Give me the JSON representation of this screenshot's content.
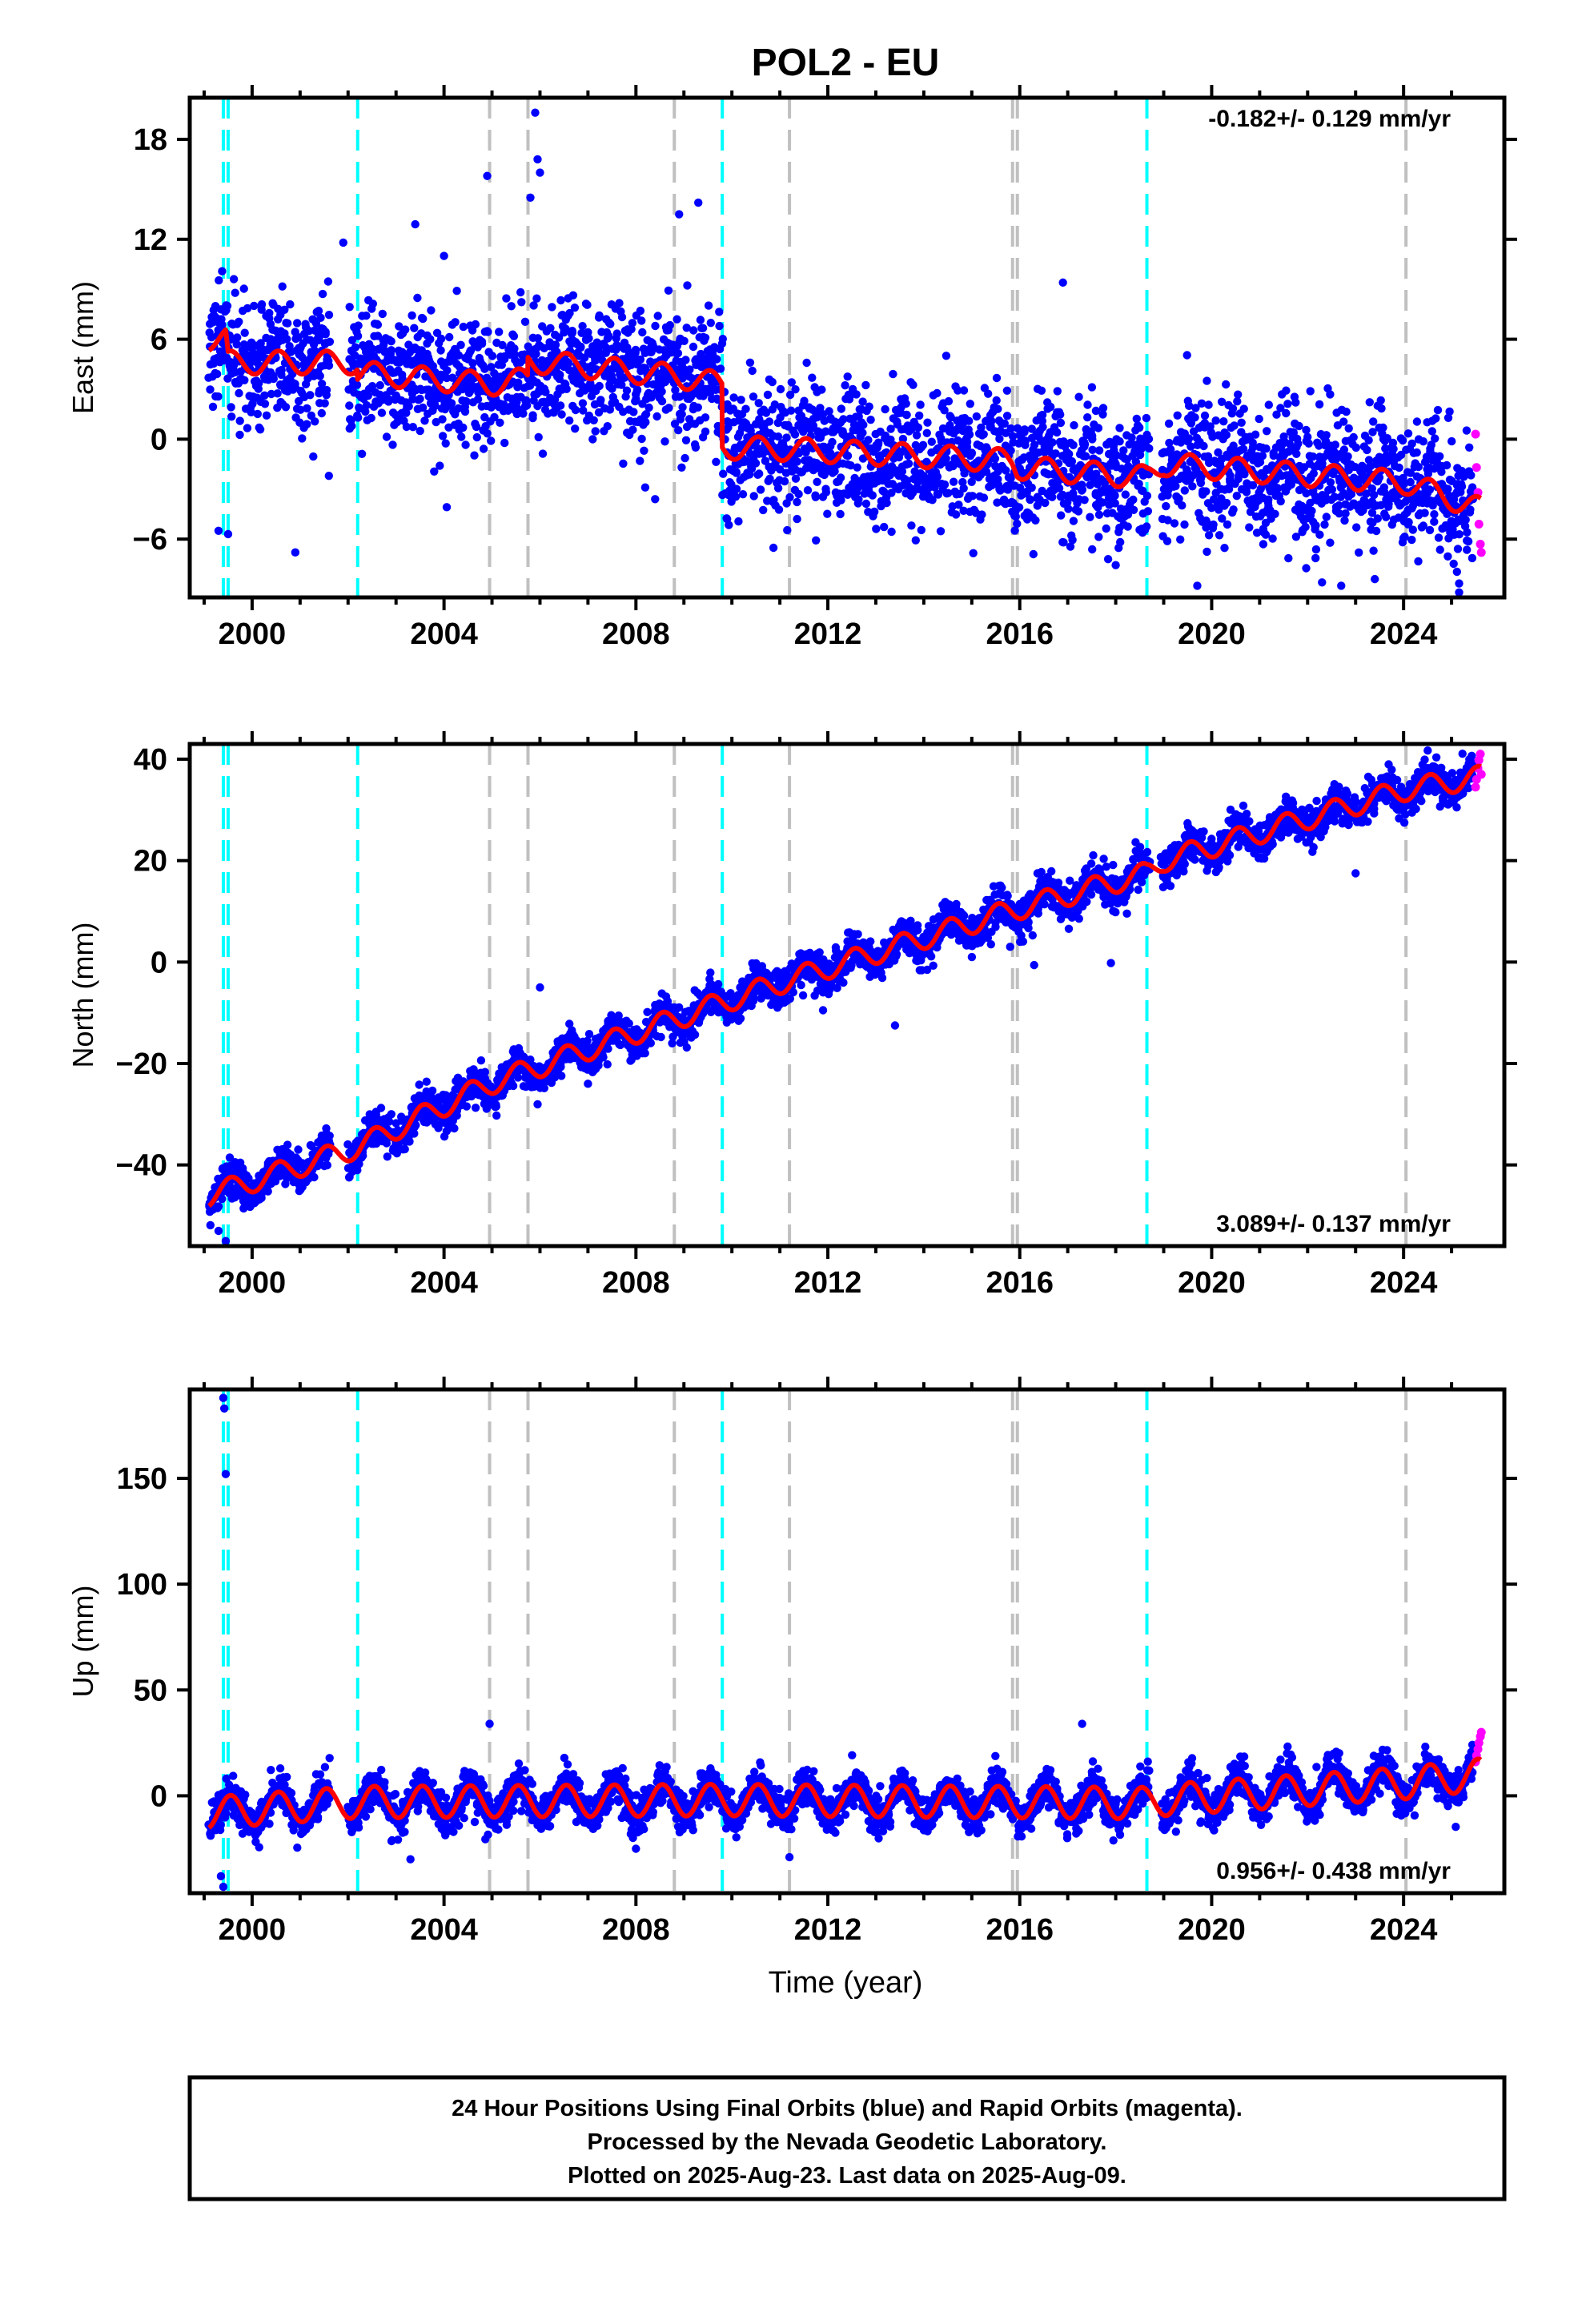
{
  "chart_data": {
    "type": "scatter",
    "title": "POL2 - EU",
    "xlabel": "Time (year)",
    "xlim": [
      1998.7,
      2026.1
    ],
    "xticks": [
      2000,
      2004,
      2008,
      2012,
      2016,
      2020,
      2024
    ],
    "xtick_labels": [
      "2000",
      "2004",
      "2008",
      "2012",
      "2016",
      "2020",
      "2024"
    ],
    "data_start": 1999.1,
    "data_end": 2025.61,
    "rapid_orbit_start": 2025.45,
    "colors": {
      "final_orbits": "#0000ff",
      "rapid_orbits": "#ff00ff",
      "model": "#ff0000",
      "antenna_change": "#00ffff",
      "other_event": "#c0c0c0"
    },
    "cyan_lines": [
      1999.4,
      1999.5,
      2002.2,
      2009.8,
      2018.65
    ],
    "gray_lines": [
      2004.95,
      2005.75,
      2008.8,
      2011.2,
      2015.85,
      2015.95,
      2024.05
    ],
    "panels": [
      {
        "component": "East",
        "ylabel": "East (mm)",
        "ylim": [
          -9.5,
          20.5
        ],
        "yticks": [
          -6,
          0,
          6,
          12,
          18
        ],
        "ytick_labels": [
          "−6",
          "0",
          "6",
          "12",
          "18"
        ],
        "rate_text": "-0.182+/- 0.129 mm/yr",
        "rate_position": "top-right",
        "scatter_sd": 1.9,
        "seasonal_amplitude": 0.7,
        "model": [
          [
            1999.1,
            6.0
          ],
          [
            1999.45,
            6.0
          ],
          [
            1999.5,
            4.6
          ],
          [
            2002.2,
            4.6
          ],
          [
            2002.2,
            4.0
          ],
          [
            2004.95,
            3.3
          ],
          [
            2005.75,
            3.6
          ],
          [
            2005.75,
            4.7
          ],
          [
            2008.8,
            3.8
          ],
          [
            2009.8,
            3.3
          ],
          [
            2009.8,
            -0.5
          ],
          [
            2011.2,
            -0.6
          ],
          [
            2015.85,
            -1.3
          ],
          [
            2015.95,
            -1.7
          ],
          [
            2018.65,
            -2.3
          ],
          [
            2019.0,
            -1.5
          ],
          [
            2024.05,
            -2.6
          ],
          [
            2025.6,
            -4.2
          ]
        ],
        "outliers": [
          [
            1999.3,
            -5.5
          ],
          [
            1999.5,
            -5.7
          ],
          [
            2000.9,
            -6.8
          ],
          [
            2001.6,
            -2.2
          ],
          [
            2001.9,
            11.8
          ],
          [
            2003.4,
            12.9
          ],
          [
            2004.0,
            11.0
          ],
          [
            2004.9,
            15.8
          ],
          [
            2005.8,
            14.5
          ],
          [
            2005.9,
            19.6
          ],
          [
            2005.95,
            16.8
          ],
          [
            2006.0,
            16.0
          ],
          [
            2008.4,
            -3.6
          ],
          [
            2008.9,
            13.5
          ],
          [
            2009.3,
            14.2
          ],
          [
            2009.9,
            -4.8
          ],
          [
            2016.9,
            9.4
          ],
          [
            2019.7,
            -8.8
          ],
          [
            2019.9,
            3.5
          ],
          [
            2022.3,
            -8.6
          ],
          [
            2022.7,
            -8.8
          ],
          [
            2023.4,
            -8.4
          ]
        ],
        "rapid": [
          [
            2025.5,
            0.3
          ],
          [
            2025.52,
            -1.7
          ],
          [
            2025.55,
            -3.2
          ],
          [
            2025.57,
            -5.1
          ],
          [
            2025.6,
            -6.3
          ],
          [
            2025.62,
            -6.8
          ]
        ]
      },
      {
        "component": "North",
        "ylabel": "North (mm)",
        "ylim": [
          -56,
          43
        ],
        "yticks": [
          -40,
          -20,
          0,
          20,
          40
        ],
        "ytick_labels": [
          "−40",
          "−20",
          "0",
          "20",
          "40"
        ],
        "rate_text": "3.089+/- 0.137 mm/yr",
        "rate_position": "bottom-right",
        "scatter_sd": 1.8,
        "seasonal_amplitude": 2.2,
        "model": [
          [
            1999.1,
            -46.0
          ],
          [
            2002.2,
            -36.5
          ],
          [
            2004.95,
            -24.0
          ],
          [
            2009.8,
            -8.0
          ],
          [
            2011.2,
            -3.5
          ],
          [
            2015.95,
            10.5
          ],
          [
            2018.65,
            17.5
          ],
          [
            2019.0,
            20.0
          ],
          [
            2024.05,
            34.0
          ],
          [
            2025.6,
            36.5
          ]
        ],
        "outliers": [
          [
            1999.3,
            -53.0
          ],
          [
            1999.45,
            -55.0
          ],
          [
            2006.0,
            -5.0
          ],
          [
            2007.0,
            -24.0
          ],
          [
            2011.9,
            -9.5
          ],
          [
            2013.4,
            -12.5
          ],
          [
            2015.4,
            3.5
          ],
          [
            2015.8,
            3.0
          ],
          [
            2016.3,
            -0.6
          ],
          [
            2017.9,
            -0.2
          ],
          [
            2019.4,
            18.5
          ],
          [
            2023.0,
            17.5
          ]
        ],
        "rapid": [
          [
            2025.5,
            34.5
          ],
          [
            2025.52,
            36.0
          ],
          [
            2025.55,
            38.2
          ],
          [
            2025.57,
            39.8
          ],
          [
            2025.6,
            41.0
          ],
          [
            2025.62,
            37.0
          ]
        ]
      },
      {
        "component": "Up",
        "ylabel": "Up (mm)",
        "ylim": [
          -46,
          192
        ],
        "yticks": [
          0,
          50,
          100,
          150
        ],
        "ytick_labels": [
          "0",
          "50",
          "100",
          "150"
        ],
        "rate_text": "0.956+/- 0.438 mm/yr",
        "rate_position": "bottom-right",
        "scatter_sd": 4.5,
        "seasonal_amplitude": 7.5,
        "model": [
          [
            1999.1,
            -8.0
          ],
          [
            2002.2,
            -3.0
          ],
          [
            2009.8,
            -2.0
          ],
          [
            2018.65,
            -3.5
          ],
          [
            2019.0,
            -2.0
          ],
          [
            2024.05,
            6.0
          ],
          [
            2025.6,
            10.0
          ]
        ],
        "outliers": [
          [
            1999.4,
            188.0
          ],
          [
            1999.42,
            183.0
          ],
          [
            1999.45,
            152.0
          ],
          [
            1999.35,
            -38.0
          ],
          [
            1999.4,
            -43.0
          ],
          [
            2004.95,
            34.0
          ],
          [
            2011.2,
            -29.0
          ],
          [
            2017.3,
            34.0
          ],
          [
            2003.3,
            -30.0
          ],
          [
            2008.0,
            -25.0
          ]
        ],
        "rapid": [
          [
            2025.5,
            16.0
          ],
          [
            2025.52,
            19.0
          ],
          [
            2025.55,
            22.0
          ],
          [
            2025.57,
            25.0
          ],
          [
            2025.6,
            28.0
          ],
          [
            2025.62,
            30.0
          ]
        ]
      }
    ]
  },
  "footer": {
    "line1": "24 Hour Positions Using Final Orbits (blue) and Rapid Orbits (magenta).",
    "line2": "Processed by the Nevada Geodetic Laboratory.",
    "line3": "Plotted on 2025-Aug-23. Last data on 2025-Aug-09."
  }
}
